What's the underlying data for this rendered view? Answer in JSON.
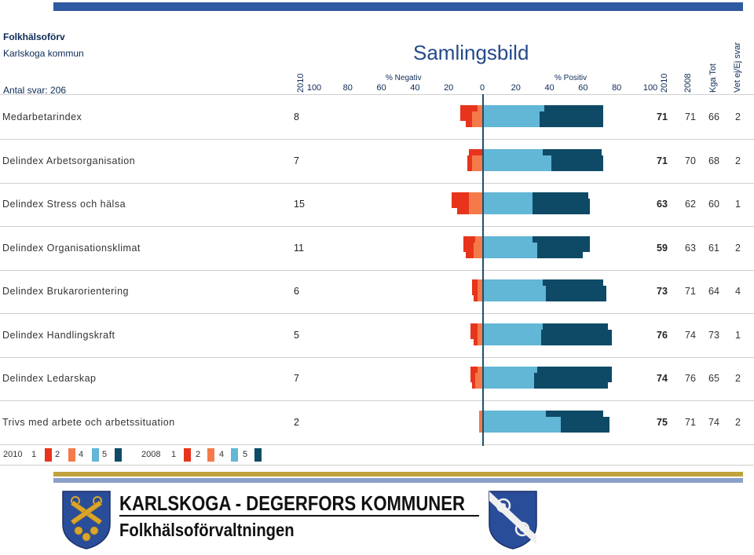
{
  "header": {
    "org": "Folkhälsoförv",
    "municipality": "Karlskoga kommun",
    "respondents": "Antal svar: 206",
    "title": "Samlingsbild",
    "neg_label": "% Negativ",
    "pos_label": "% Positiv",
    "col_2010_left": "2010",
    "col_2010": "2010",
    "col_2008": "2008",
    "col_kga": "Kga Tot",
    "col_vet": "Vet ej/Ej svar"
  },
  "colors": {
    "neg_1": "#e8341c",
    "neg_2": "#f47a4a",
    "pos_4": "#62b6d6",
    "pos_5": "#0e4a66",
    "axis": "#1f4f6f"
  },
  "chart_data": {
    "type": "bar",
    "subtype": "diverging-stacked",
    "title": "Samlingsbild",
    "xlim": [
      -100,
      100
    ],
    "ticks": [
      "100",
      "80",
      "60",
      "40",
      "20",
      "0",
      "20",
      "40",
      "60",
      "80",
      "100"
    ],
    "tick_values": [
      -100,
      -80,
      -60,
      -40,
      -20,
      0,
      20,
      40,
      60,
      80,
      100
    ],
    "legend": {
      "y2010": {
        "label": "2010",
        "items": [
          "1",
          "2",
          "4",
          "5"
        ]
      },
      "y2008": {
        "label": "2008",
        "items": [
          "1",
          "2",
          "4",
          "5"
        ]
      }
    },
    "rows": [
      {
        "label": "Medarbetarindex",
        "neutral": "8",
        "pos2010": "71",
        "pos2008": "71",
        "kga": "66",
        "vet": "2",
        "y2010": {
          "n1": 4,
          "n2": 6,
          "p4": 33,
          "p5": 38
        },
        "y2008": {
          "n1": 10,
          "n2": 3,
          "p4": 36,
          "p5": 35
        }
      },
      {
        "label": "Delindex Arbetsorganisation",
        "neutral": "7",
        "pos2010": "71",
        "pos2008": "70",
        "kga": "68",
        "vet": "2",
        "y2010": {
          "n1": 3,
          "n2": 6,
          "p4": 40,
          "p5": 31
        },
        "y2008": {
          "n1": 8,
          "n2": 0,
          "p4": 35,
          "p5": 35
        }
      },
      {
        "label": "Delindex Stress och hälsa",
        "neutral": "15",
        "pos2010": "63",
        "pos2008": "62",
        "kga": "60",
        "vet": "1",
        "y2010": {
          "n1": 7,
          "n2": 8,
          "p4": 29,
          "p5": 34
        },
        "y2008": {
          "n1": 10,
          "n2": 8,
          "p4": 29,
          "p5": 33
        }
      },
      {
        "label": "Delindex Organisationsklimat",
        "neutral": "11",
        "pos2010": "59",
        "pos2008": "63",
        "kga": "61",
        "vet": "2",
        "y2010": {
          "n1": 5,
          "n2": 5,
          "p4": 32,
          "p5": 27
        },
        "y2008": {
          "n1": 7,
          "n2": 4,
          "p4": 29,
          "p5": 34
        }
      },
      {
        "label": "Delindex Brukarorientering",
        "neutral": "6",
        "pos2010": "73",
        "pos2008": "71",
        "kga": "64",
        "vet": "4",
        "y2010": {
          "n1": 2,
          "n2": 3,
          "p4": 37,
          "p5": 36
        },
        "y2008": {
          "n1": 3,
          "n2": 3,
          "p4": 35,
          "p5": 36
        }
      },
      {
        "label": "Delindex Handlingskraft",
        "neutral": "5",
        "pos2010": "76",
        "pos2008": "74",
        "kga": "73",
        "vet": "1",
        "y2010": {
          "n1": 2,
          "n2": 3,
          "p4": 34,
          "p5": 42
        },
        "y2008": {
          "n1": 4,
          "n2": 3,
          "p4": 35,
          "p5": 39
        }
      },
      {
        "label": "Delindex Ledarskap",
        "neutral": "7",
        "pos2010": "74",
        "pos2008": "76",
        "kga": "65",
        "vet": "2",
        "y2010": {
          "n1": 2,
          "n2": 4,
          "p4": 30,
          "p5": 44
        },
        "y2008": {
          "n1": 4,
          "n2": 3,
          "p4": 32,
          "p5": 44
        }
      },
      {
        "label": "Trivs med arbete och arbetssituation",
        "neutral": "2",
        "pos2010": "75",
        "pos2008": "71",
        "kga": "74",
        "vet": "2",
        "y2010": {
          "n1": 0,
          "n2": 2,
          "p4": 46,
          "p5": 29
        },
        "y2008": {
          "n1": 0,
          "n2": 2,
          "p4": 37,
          "p5": 34
        }
      }
    ]
  },
  "footer": {
    "line1": "KARLSKOGA - DEGERFORS  KOMMUNER",
    "line2": "Folkhälsoförvaltningen"
  }
}
